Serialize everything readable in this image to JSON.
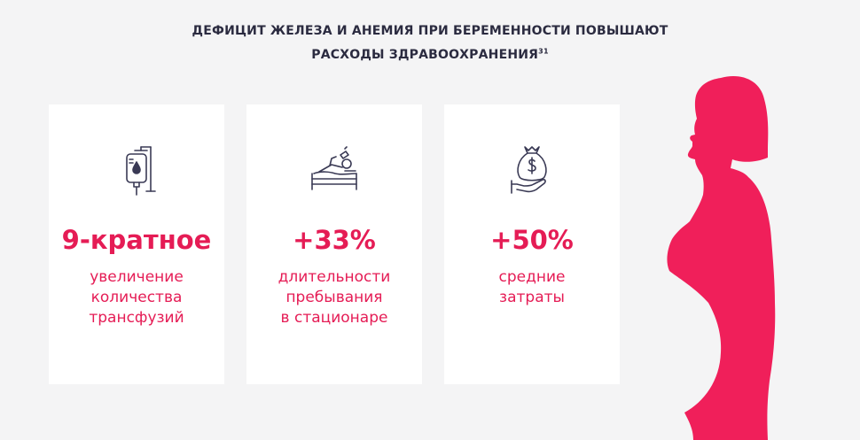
{
  "header": {
    "title_line1": "ДЕФИЦИТ ЖЕЛЕЗА И АНЕМИЯ ПРИ БЕРЕМЕННОСТИ ПОВЫШАЮТ",
    "title_line2": "РАСХОДЫ ЗДРАВООХРАНЕНИЯ",
    "footnote": "31"
  },
  "colors": {
    "accent": "#e51c55",
    "heading": "#2b2b40",
    "icon": "#3a3a55",
    "background": "#f4f4f5",
    "card": "#ffffff"
  },
  "cards": [
    {
      "icon": "iv-drip-bag-icon",
      "value": "9-кратное",
      "desc": [
        "увеличение",
        "количества",
        "трансфузий"
      ]
    },
    {
      "icon": "hospital-bed-icon",
      "value": "+33%",
      "desc": [
        "длительности",
        "пребывания",
        "в стационаре"
      ]
    },
    {
      "icon": "money-bag-hand-icon",
      "value": "+50%",
      "desc": [
        "средние",
        "затраты"
      ]
    }
  ],
  "illustration": {
    "icon": "pregnant-woman-silhouette"
  }
}
